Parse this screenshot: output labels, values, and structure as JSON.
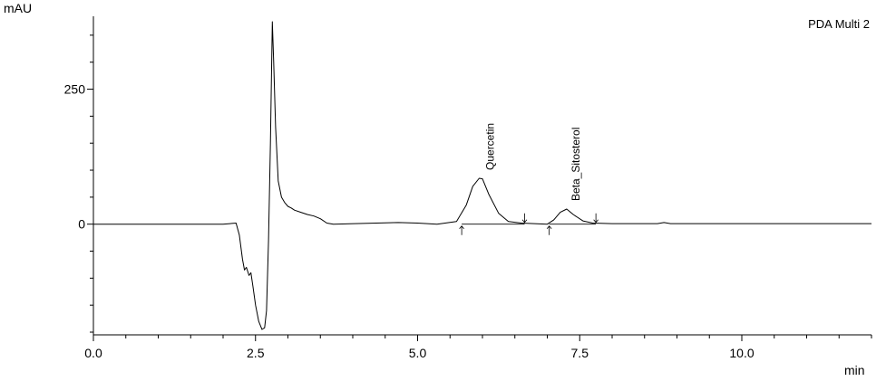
{
  "chart_data": {
    "type": "line",
    "title": "",
    "detector_label": "PDA Multi 2",
    "xlabel": "min",
    "ylabel": "mAU",
    "xlim": [
      0.0,
      12.0
    ],
    "ylim": [
      -205,
      385
    ],
    "x_ticks": [
      0.0,
      2.5,
      5.0,
      7.5,
      10.0
    ],
    "x_tick_labels": [
      "0.0",
      "2.5",
      "5.0",
      "7.5",
      "10.0"
    ],
    "x_minor_step": 0.5,
    "y_ticks": [
      0,
      250
    ],
    "y_tick_labels": [
      "0",
      "250"
    ],
    "y_minor_step": 50,
    "grid": false,
    "series": [
      {
        "kind": "signal",
        "x": [
          0.0,
          2.0,
          2.2,
          2.25,
          2.3,
          2.33,
          2.36,
          2.4,
          2.43,
          2.46,
          2.5,
          2.55,
          2.6,
          2.64,
          2.67,
          2.7,
          2.73,
          2.76,
          2.78,
          2.81,
          2.85,
          2.9,
          2.95,
          3.0,
          3.05,
          3.1,
          3.2,
          3.3,
          3.4,
          3.5,
          3.6,
          3.7,
          4.7,
          5.0,
          5.3,
          5.6,
          5.75,
          5.85,
          5.95,
          6.0,
          6.1,
          6.25,
          6.4,
          6.6,
          6.8,
          7.0,
          7.1,
          7.2,
          7.3,
          7.4,
          7.55,
          7.7,
          8.0,
          8.7,
          8.8,
          8.9,
          12.0
        ],
        "y": [
          0,
          0,
          2,
          -20,
          -65,
          -85,
          -80,
          -95,
          -90,
          -115,
          -150,
          -180,
          -195,
          -192,
          -160,
          -30,
          150,
          375,
          300,
          180,
          80,
          50,
          40,
          33,
          30,
          26,
          22,
          18,
          15,
          10,
          2,
          0,
          3,
          2,
          0,
          5,
          35,
          70,
          85,
          84,
          55,
          20,
          5,
          2,
          1,
          0,
          8,
          22,
          28,
          18,
          6,
          2,
          1,
          1,
          3,
          1,
          1
        ]
      },
      {
        "kind": "baseline",
        "x": [
          5.68,
          6.65,
          7.03,
          7.75
        ],
        "y": [
          0,
          0,
          0,
          0
        ]
      }
    ],
    "peaks": [
      {
        "name": "Quercetin",
        "apex_rt": 5.98,
        "apex_mAU": 85,
        "start_rt": 5.68,
        "end_rt": 6.65
      },
      {
        "name": "Beta_Sitosterol",
        "apex_rt": 7.3,
        "apex_mAU": 28,
        "start_rt": 7.03,
        "end_rt": 7.75
      }
    ]
  }
}
